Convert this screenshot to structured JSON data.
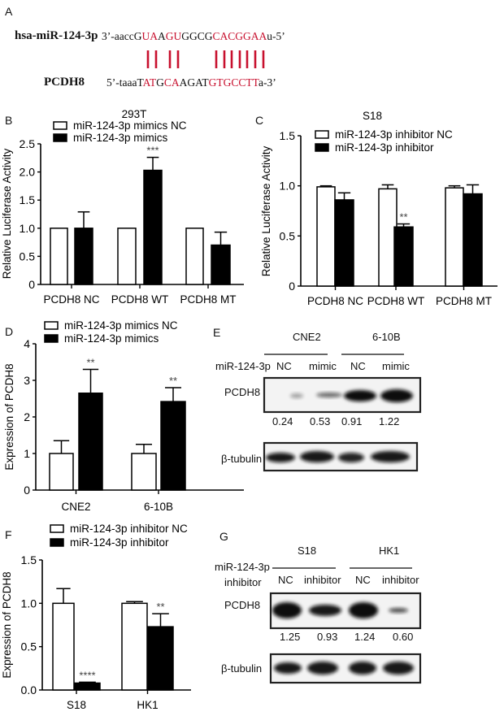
{
  "panel_a": {
    "label": "A",
    "mirna_name": "hsa-miR-124-3p",
    "mirna_seq": [
      {
        "t": "3’-aaccG",
        "red": false
      },
      {
        "t": "UA",
        "red": true
      },
      {
        "t": "A",
        "red": false
      },
      {
        "t": "GU",
        "red": true
      },
      {
        "t": "GGCG",
        "red": false
      },
      {
        "t": "CACGGAA",
        "red": true
      },
      {
        "t": "u-5’",
        "red": false
      }
    ],
    "target_name": "PCDH8",
    "target_seq": [
      {
        "t": "5’-taaaT",
        "red": false
      },
      {
        "t": "AT",
        "red": true
      },
      {
        "t": "G",
        "red": false
      },
      {
        "t": "CA",
        "red": true
      },
      {
        "t": "AGAT",
        "red": false
      },
      {
        "t": "GTGCCTT",
        "red": true
      },
      {
        "t": "a-3’",
        "red": false
      }
    ],
    "pairing_color": "#c8102e"
  },
  "chart_data": [
    {
      "panel": "B",
      "type": "bar",
      "title": "293T",
      "ylabel": "Relative Luciferase Activity",
      "ylim": [
        0,
        2.5
      ],
      "yticks": [
        "0",
        "0.5",
        "1.0",
        "1.5",
        "2.0",
        "2.5"
      ],
      "categories": [
        "PCDH8 NC",
        "PCDH8 WT",
        "PCDH8 MT"
      ],
      "legend_position": "top-left",
      "series": [
        {
          "name": "miR-124-3p mimics NC",
          "fill": "#ffffff",
          "values": [
            1.0,
            1.0,
            1.0
          ],
          "errors": [
            0,
            0,
            0
          ]
        },
        {
          "name": "miR-124-3p mimics",
          "fill": "#000000",
          "values": [
            1.0,
            2.03,
            0.7
          ],
          "errors": [
            0.29,
            0.23,
            0.23
          ]
        }
      ],
      "annotations": [
        {
          "category": "PCDH8 WT",
          "series": 1,
          "text": "***"
        }
      ]
    },
    {
      "panel": "C",
      "type": "bar",
      "title": "S18",
      "ylabel": "Relative Luciferase Activity",
      "ylim": [
        0,
        1.5
      ],
      "yticks": [
        "0",
        "0.5",
        "1.0",
        "1.5"
      ],
      "categories": [
        "PCDH8 NC",
        "PCDH8 WT",
        "PCDH8 MT"
      ],
      "legend_position": "top-left",
      "series": [
        {
          "name": "miR-124-3p inhibitor NC",
          "fill": "#ffffff",
          "values": [
            0.99,
            0.97,
            0.98
          ],
          "errors": [
            0.01,
            0.04,
            0.02
          ]
        },
        {
          "name": "miR-124-3p inhibitor",
          "fill": "#000000",
          "values": [
            0.86,
            0.59,
            0.92
          ],
          "errors": [
            0.07,
            0.03,
            0.09
          ]
        }
      ],
      "annotations": [
        {
          "category": "PCDH8 WT",
          "series": 1,
          "text": "**"
        }
      ]
    },
    {
      "panel": "D",
      "type": "bar",
      "title": "",
      "ylabel": "Expression of PCDH8",
      "ylim": [
        0,
        4
      ],
      "yticks": [
        "0",
        "1",
        "2",
        "3",
        "4"
      ],
      "categories": [
        "CNE2",
        "6-10B"
      ],
      "legend_position": "top-left",
      "series": [
        {
          "name": "miR-124-3p mimics NC",
          "fill": "#ffffff",
          "values": [
            1.0,
            1.0
          ],
          "errors": [
            0.35,
            0.25
          ]
        },
        {
          "name": "miR-124-3p mimics",
          "fill": "#000000",
          "values": [
            2.65,
            2.42
          ],
          "errors": [
            0.65,
            0.38
          ]
        }
      ],
      "annotations": [
        {
          "category": "CNE2",
          "series": 1,
          "text": "**"
        },
        {
          "category": "6-10B",
          "series": 1,
          "text": "**"
        }
      ]
    },
    {
      "panel": "F",
      "type": "bar",
      "title": "",
      "ylabel": "Expression of PCDH8",
      "ylim": [
        0,
        1.5
      ],
      "yticks": [
        "0.0",
        "0.5",
        "1.0",
        "1.5"
      ],
      "categories": [
        "S18",
        "HK1"
      ],
      "legend_position": "top-left",
      "series": [
        {
          "name": "miR-124-3p inhibitor NC",
          "fill": "#ffffff",
          "values": [
            1.0,
            1.0
          ],
          "errors": [
            0.17,
            0.02
          ]
        },
        {
          "name": "miR-124-3p inhibitor",
          "fill": "#000000",
          "values": [
            0.08,
            0.73
          ],
          "errors": [
            0.01,
            0.15
          ]
        }
      ],
      "annotations": [
        {
          "category": "S18",
          "series": 1,
          "text": "****"
        },
        {
          "category": "HK1",
          "series": 1,
          "text": "**"
        }
      ]
    }
  ],
  "panel_e": {
    "label": "E",
    "groups": [
      "CNE2",
      "6-10B"
    ],
    "row_label": "miR-124-3p",
    "lanes": [
      "NC",
      "mimic",
      "NC",
      "mimic"
    ],
    "blot1_label": "PCDH8",
    "values": [
      "0.24",
      "0.53",
      "0.91",
      "1.22"
    ],
    "blot2_label": "β-tubulin"
  },
  "panel_g": {
    "label": "G",
    "groups": [
      "S18",
      "HK1"
    ],
    "row_label_1": "miR-124-3p",
    "row_label_2": "inhibitor",
    "lanes": [
      "NC",
      "inhibitor",
      "NC",
      "inhibitor"
    ],
    "blot1_label": "PCDH8",
    "values": [
      "1.25",
      "0.93",
      "1.24",
      "0.60"
    ],
    "blot2_label": "β-tubulin"
  }
}
